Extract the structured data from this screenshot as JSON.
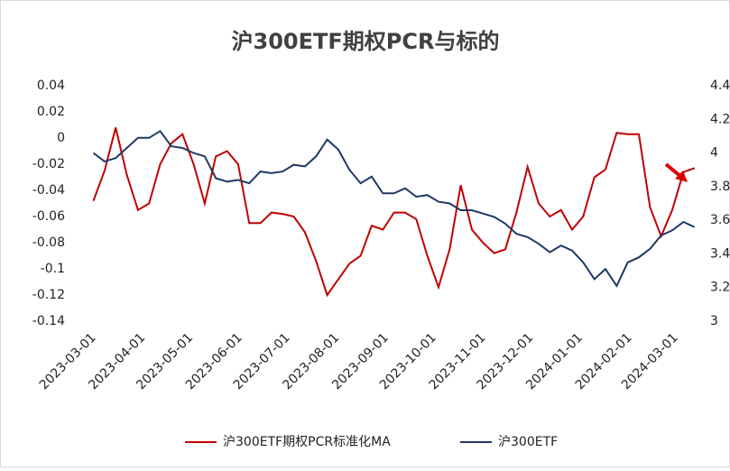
{
  "chart_data": {
    "type": "line",
    "title": "沪300ETF期权PCR与标的",
    "x": [
      "2023-03-03",
      "2023-03-10",
      "2023-03-17",
      "2023-03-24",
      "2023-03-31",
      "2023-04-07",
      "2023-04-14",
      "2023-04-21",
      "2023-04-28",
      "2023-05-05",
      "2023-05-12",
      "2023-05-19",
      "2023-05-26",
      "2023-06-02",
      "2023-06-09",
      "2023-06-16",
      "2023-06-23",
      "2023-06-30",
      "2023-07-07",
      "2023-07-14",
      "2023-07-21",
      "2023-07-28",
      "2023-08-04",
      "2023-08-11",
      "2023-08-18",
      "2023-08-25",
      "2023-09-01",
      "2023-09-08",
      "2023-09-15",
      "2023-09-22",
      "2023-09-29",
      "2023-10-06",
      "2023-10-13",
      "2023-10-20",
      "2023-10-27",
      "2023-11-03",
      "2023-11-10",
      "2023-11-17",
      "2023-11-24",
      "2023-12-01",
      "2023-12-08",
      "2023-12-15",
      "2023-12-22",
      "2023-12-29",
      "2024-01-05",
      "2024-01-12",
      "2024-01-19",
      "2024-01-26",
      "2024-02-02",
      "2024-02-09",
      "2024-02-16",
      "2024-02-23",
      "2024-03-01",
      "2024-03-08",
      "2024-03-15"
    ],
    "series": [
      {
        "name": "沪300ETF期权PCR标准化MA",
        "color": "#c00000",
        "axis": "y",
        "values": [
          -0.048,
          -0.025,
          0.008,
          -0.028,
          -0.055,
          -0.05,
          -0.02,
          -0.004,
          0.003,
          -0.02,
          -0.05,
          -0.014,
          -0.01,
          -0.02,
          -0.065,
          -0.065,
          -0.057,
          -0.058,
          -0.06,
          -0.072,
          -0.094,
          -0.12,
          -0.108,
          -0.096,
          -0.09,
          -0.067,
          -0.07,
          -0.057,
          -0.057,
          -0.062,
          -0.09,
          -0.114,
          -0.085,
          -0.036,
          -0.07,
          -0.08,
          -0.088,
          -0.085,
          -0.057,
          -0.022,
          -0.05,
          -0.06,
          -0.055,
          -0.07,
          -0.06,
          -0.03,
          -0.024,
          0.004,
          0.003,
          0.003,
          -0.053,
          -0.075,
          -0.055,
          -0.026,
          -0.023
        ]
      },
      {
        "name": "沪300ETF",
        "color": "#1f3864",
        "axis": "y2",
        "values": [
          4.0,
          3.95,
          3.97,
          4.03,
          4.09,
          4.09,
          4.13,
          4.04,
          4.03,
          4.0,
          3.98,
          3.85,
          3.83,
          3.84,
          3.82,
          3.89,
          3.88,
          3.89,
          3.93,
          3.92,
          3.98,
          4.08,
          4.02,
          3.9,
          3.82,
          3.86,
          3.76,
          3.76,
          3.79,
          3.74,
          3.75,
          3.71,
          3.7,
          3.66,
          3.66,
          3.64,
          3.62,
          3.58,
          3.52,
          3.5,
          3.46,
          3.41,
          3.45,
          3.42,
          3.35,
          3.25,
          3.31,
          3.21,
          3.35,
          3.38,
          3.43,
          3.51,
          3.54,
          3.59,
          3.56
        ]
      }
    ],
    "xlim": [
      "2023-03-01",
      "2024-03-18"
    ],
    "xticks": [
      "2023-03-01",
      "2023-04-01",
      "2023-05-01",
      "2023-06-01",
      "2023-07-01",
      "2023-08-01",
      "2023-09-01",
      "2023-10-01",
      "2023-11-01",
      "2023-12-01",
      "2024-01-01",
      "2024-02-01",
      "2024-03-01"
    ],
    "ylim": [
      -0.14,
      0.04
    ],
    "yticks": [
      -0.14,
      -0.12,
      -0.1,
      -0.08,
      -0.06,
      -0.04,
      -0.02,
      0,
      0.02,
      0.04
    ],
    "y2lim": [
      3,
      4.4
    ],
    "y2ticks": [
      3,
      3.2,
      3.4,
      3.6,
      3.8,
      4,
      4.2,
      4.4
    ],
    "legend": "bottom"
  }
}
